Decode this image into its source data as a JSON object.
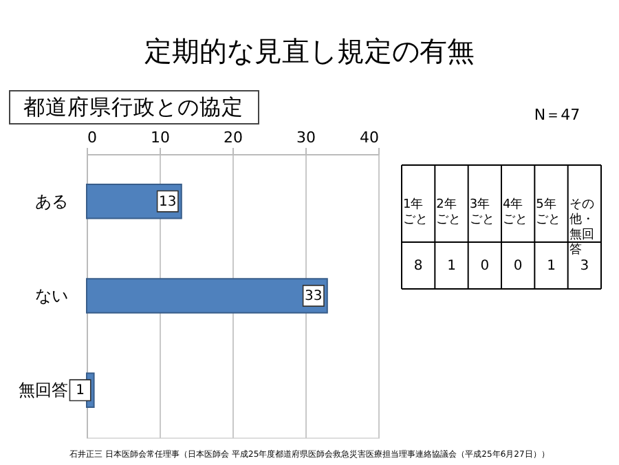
{
  "chart_data": {
    "type": "bar",
    "orientation": "horizontal",
    "title": "定期的な見直し規定の有無",
    "subtitle": "都道府県行政との協定",
    "categories": [
      "ある",
      "ない",
      "無回答"
    ],
    "values": [
      13,
      33,
      1
    ],
    "color": "#4f81bd",
    "xlim": [
      0,
      40
    ],
    "xticks": [
      0,
      10,
      20,
      30,
      40
    ],
    "grid": "x",
    "data_labels": true,
    "annotations": [
      "N＝47",
      "1年ごと",
      "2年ごと",
      "3年ごと",
      "4年ごと",
      "5年ごと",
      "その他・無回答",
      "8",
      "1",
      "0",
      "0",
      "1",
      "3",
      "石井正三 日本医師会常任理事（日本医師会 平成25年度都道府県医師会救急災害医療担当理事連絡協議会（平成25年6月27日））"
    ]
  }
}
